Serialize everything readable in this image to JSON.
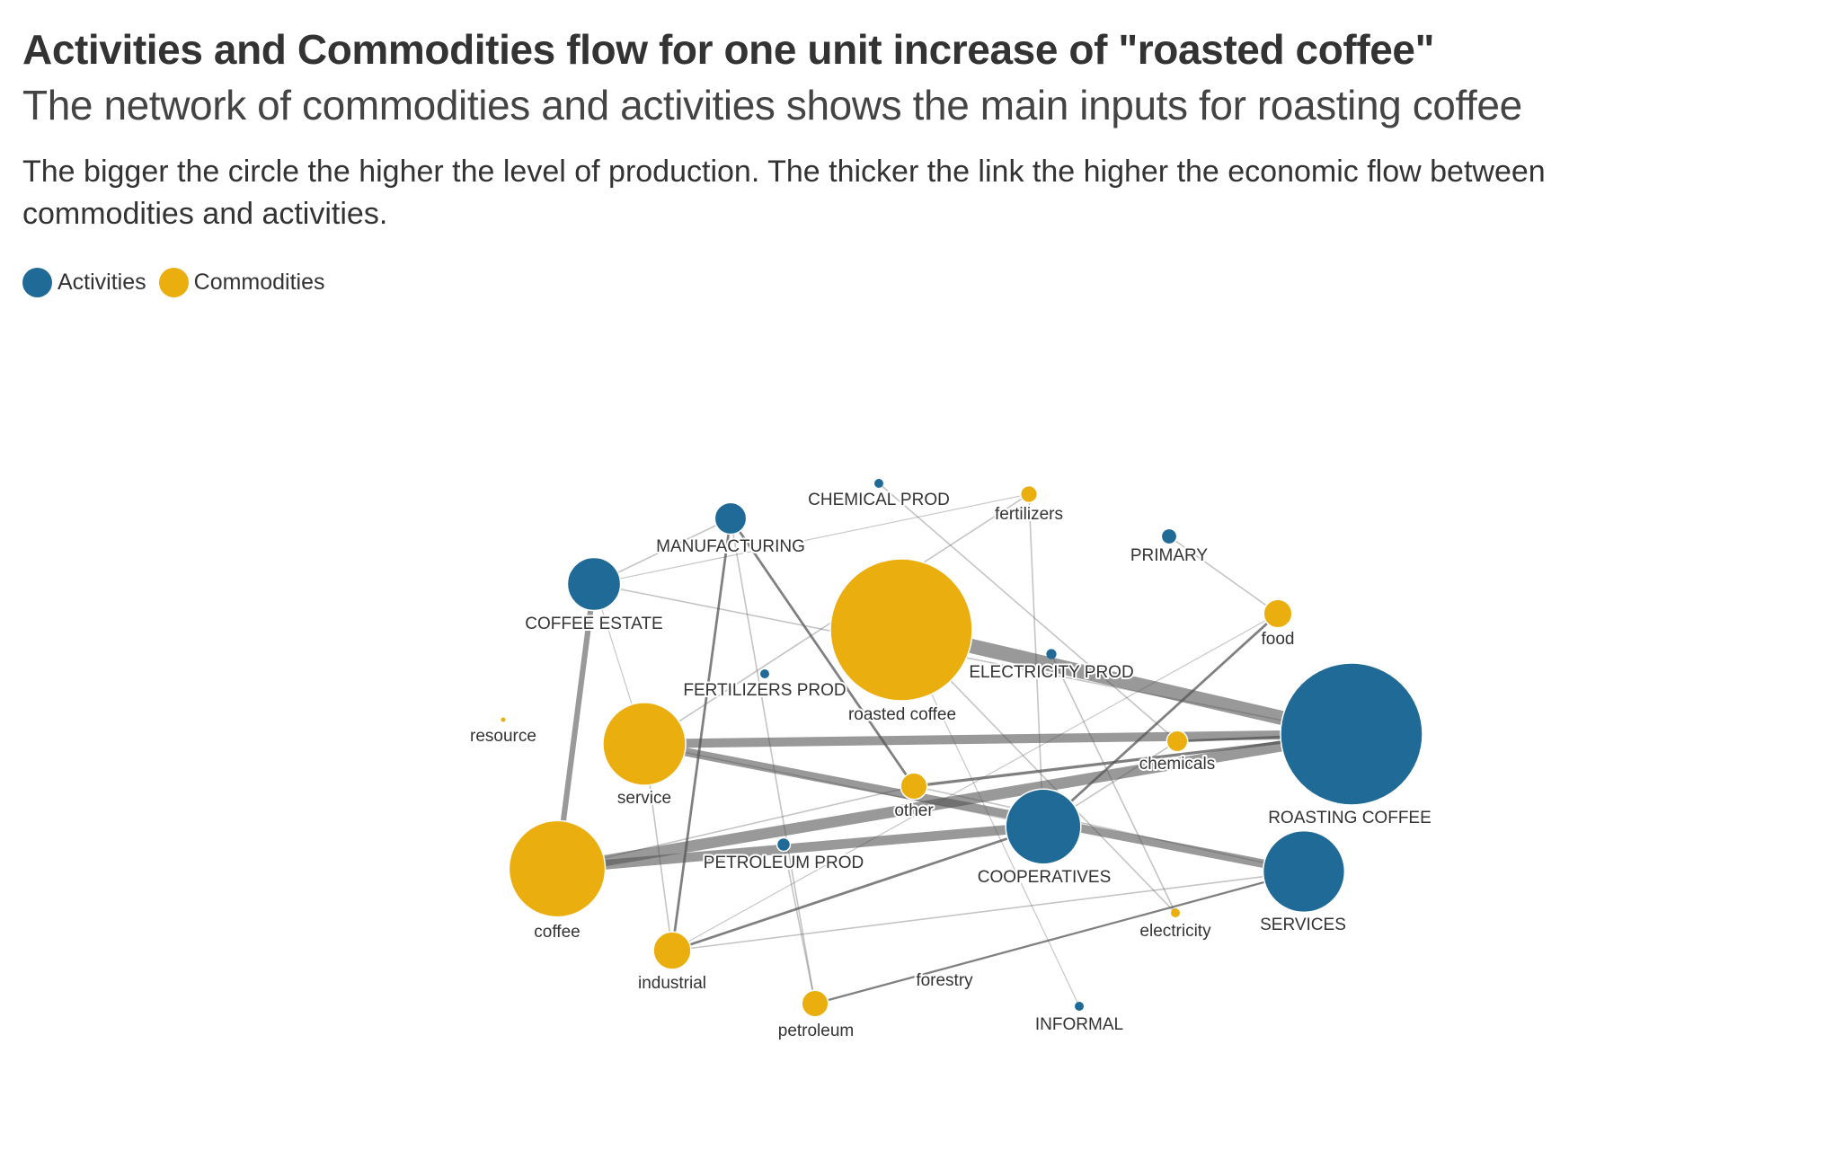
{
  "title": "Activities and Commodities flow for one unit increase of \"roasted coffee\"",
  "subtitle": "The network of commodities and activities shows the main inputs for roasting coffee",
  "description": "The bigger the circle the higher the level of production. The thicker the link the higher the economic flow between commodities and activities.",
  "legend": [
    {
      "label": "Activities",
      "color": "#1f6a96"
    },
    {
      "label": "Commodities",
      "color": "#ebae0f"
    }
  ],
  "colors": {
    "activity": "#1f6a96",
    "commodity": "#ebae0f",
    "link": "#555555"
  },
  "chart_data": {
    "type": "network",
    "nodes": [
      {
        "id": "roasting_coffee",
        "label": "ROASTING COFFEE",
        "group": "Activities",
        "size": 1.0
      },
      {
        "id": "roasted_coffee",
        "label": "roasted coffee",
        "group": "Commodities",
        "size": 1.0
      },
      {
        "id": "coffee",
        "label": "coffee",
        "group": "Commodities",
        "size": 0.46
      },
      {
        "id": "service",
        "label": "service",
        "group": "Commodities",
        "size": 0.34
      },
      {
        "id": "services",
        "label": "SERVICES",
        "group": "Activities",
        "size": 0.33
      },
      {
        "id": "cooperatives",
        "label": "COOPERATIVES",
        "group": "Activities",
        "size": 0.28
      },
      {
        "id": "coffee_estate",
        "label": "COFFEE ESTATE",
        "group": "Activities",
        "size": 0.14
      },
      {
        "id": "industrial",
        "label": "industrial",
        "group": "Commodities",
        "size": 0.07
      },
      {
        "id": "manufacturing",
        "label": "MANUFACTURING",
        "group": "Activities",
        "size": 0.05
      },
      {
        "id": "food",
        "label": "food",
        "group": "Commodities",
        "size": 0.04
      },
      {
        "id": "other",
        "label": "other",
        "group": "Commodities",
        "size": 0.035
      },
      {
        "id": "petroleum",
        "label": "petroleum",
        "group": "Commodities",
        "size": 0.035
      },
      {
        "id": "chemicals",
        "label": "chemicals",
        "group": "Commodities",
        "size": 0.022
      },
      {
        "id": "fertilizers",
        "label": "fertilizers",
        "group": "Commodities",
        "size": 0.014
      },
      {
        "id": "primary",
        "label": "PRIMARY",
        "group": "Activities",
        "size": 0.012
      },
      {
        "id": "petroleum_prod",
        "label": "PETROLEUM PROD",
        "group": "Activities",
        "size": 0.009
      },
      {
        "id": "electricity_prod",
        "label": "ELECTRICITY PROD",
        "group": "Activities",
        "size": 0.005
      },
      {
        "id": "chemical_prod",
        "label": "CHEMICAL PROD",
        "group": "Activities",
        "size": 0.004
      },
      {
        "id": "fertilizers_prod",
        "label": "FERTILIZERS PROD",
        "group": "Activities",
        "size": 0.004
      },
      {
        "id": "informal",
        "label": "INFORMAL",
        "group": "Activities",
        "size": 0.004
      },
      {
        "id": "electricity",
        "label": "electricity",
        "group": "Commodities",
        "size": 0.004
      },
      {
        "id": "resource",
        "label": "resource",
        "group": "Commodities",
        "size": 0.001
      },
      {
        "id": "forestry",
        "label": "forestry",
        "group": "Commodities",
        "size": 0.0
      }
    ],
    "links": [
      {
        "source": "roasted_coffee",
        "target": "roasting_coffee",
        "weight": 1.0
      },
      {
        "source": "coffee",
        "target": "roasting_coffee",
        "weight": 0.6
      },
      {
        "source": "coffee",
        "target": "cooperatives",
        "weight": 0.45
      },
      {
        "source": "service",
        "target": "roasting_coffee",
        "weight": 0.4
      },
      {
        "source": "service",
        "target": "services",
        "weight": 0.35
      },
      {
        "source": "coffee_estate",
        "target": "coffee",
        "weight": 0.15
      },
      {
        "source": "other",
        "target": "roasting_coffee",
        "weight": 0.04
      },
      {
        "source": "chemicals",
        "target": "roasting_coffee",
        "weight": 0.03
      },
      {
        "source": "food",
        "target": "cooperatives",
        "weight": 0.03
      },
      {
        "source": "manufacturing",
        "target": "industrial",
        "weight": 0.03
      },
      {
        "source": "industrial",
        "target": "cooperatives",
        "weight": 0.03
      },
      {
        "source": "manufacturing",
        "target": "other",
        "weight": 0.03
      },
      {
        "source": "petroleum",
        "target": "services",
        "weight": 0.02
      },
      {
        "source": "coffee_estate",
        "target": "roasting_coffee",
        "weight": 0.01
      },
      {
        "source": "manufacturing",
        "target": "coffee_estate",
        "weight": 0.01
      },
      {
        "source": "manufacturing",
        "target": "petroleum",
        "weight": 0.01
      },
      {
        "source": "chemical_prod",
        "target": "chemicals",
        "weight": 0.01
      },
      {
        "source": "fertilizers",
        "target": "cooperatives",
        "weight": 0.01
      },
      {
        "source": "fertilizers",
        "target": "service",
        "weight": 0.01
      },
      {
        "source": "primary",
        "target": "food",
        "weight": 0.01
      },
      {
        "source": "electricity",
        "target": "roasted_coffee",
        "weight": 0.01
      },
      {
        "source": "industrial",
        "target": "services",
        "weight": 0.01
      },
      {
        "source": "service",
        "target": "cooperatives",
        "weight": 0.01
      },
      {
        "source": "industrial",
        "target": "service",
        "weight": 0.01
      },
      {
        "source": "chemicals",
        "target": "cooperatives",
        "weight": 0.01
      },
      {
        "source": "petroleum_prod",
        "target": "petroleum",
        "weight": 0.01
      },
      {
        "source": "other",
        "target": "coffee",
        "weight": 0.01
      },
      {
        "source": "electricity_prod",
        "target": "electricity",
        "weight": 0.01
      },
      {
        "source": "other",
        "target": "services",
        "weight": 0.01
      },
      {
        "source": "fertilizers",
        "target": "coffee_estate",
        "weight": 0.005
      },
      {
        "source": "coffee_estate",
        "target": "service",
        "weight": 0.005
      },
      {
        "source": "informal",
        "target": "roasted_coffee",
        "weight": 0.005
      },
      {
        "source": "food",
        "target": "industrial",
        "weight": 0.005
      }
    ]
  }
}
